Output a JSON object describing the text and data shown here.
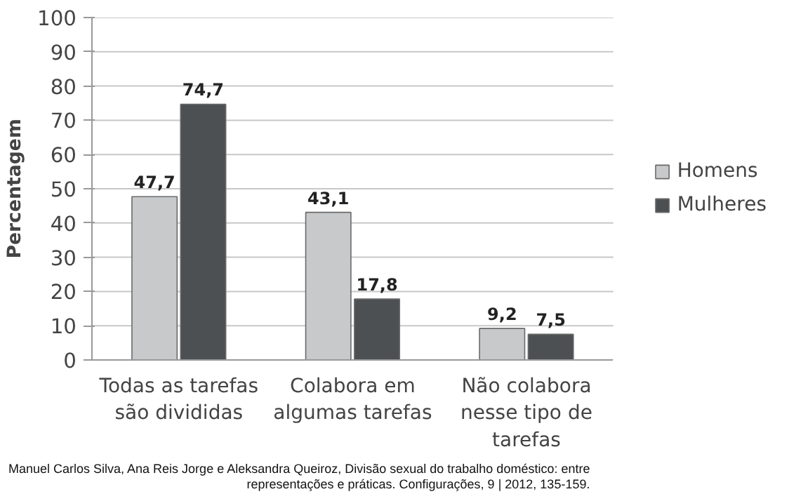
{
  "chart_data": {
    "type": "bar",
    "ylabel": "Percentagem",
    "categories": [
      "Todas as tarefas são divididas",
      "Colabora em algumas tarefas",
      "Não colabora nesse tipo de tarefas"
    ],
    "series": [
      {
        "name": "Homens",
        "color": "#c8c9cb",
        "values": [
          47.7,
          43.1,
          9.2
        ],
        "value_labels": [
          "47,7",
          "43,1",
          "9,2"
        ]
      },
      {
        "name": "Mulheres",
        "color": "#4d5053",
        "values": [
          74.7,
          17.8,
          7.5
        ],
        "value_labels": [
          "74,7",
          "17,8",
          "7,5"
        ]
      }
    ],
    "ylim": [
      0,
      100
    ],
    "yticks": [
      0,
      10,
      20,
      30,
      40,
      50,
      60,
      70,
      80,
      90,
      100
    ],
    "grid": "y",
    "legend": "right",
    "annotations": [
      "Manuel Carlos Silva, Ana Reis Jorge e Aleksandra Queiroz, Divisão sexual do trabalho doméstico: entre",
      "representações e práticas. Configurações, 9 | 2012, 135-159."
    ]
  }
}
